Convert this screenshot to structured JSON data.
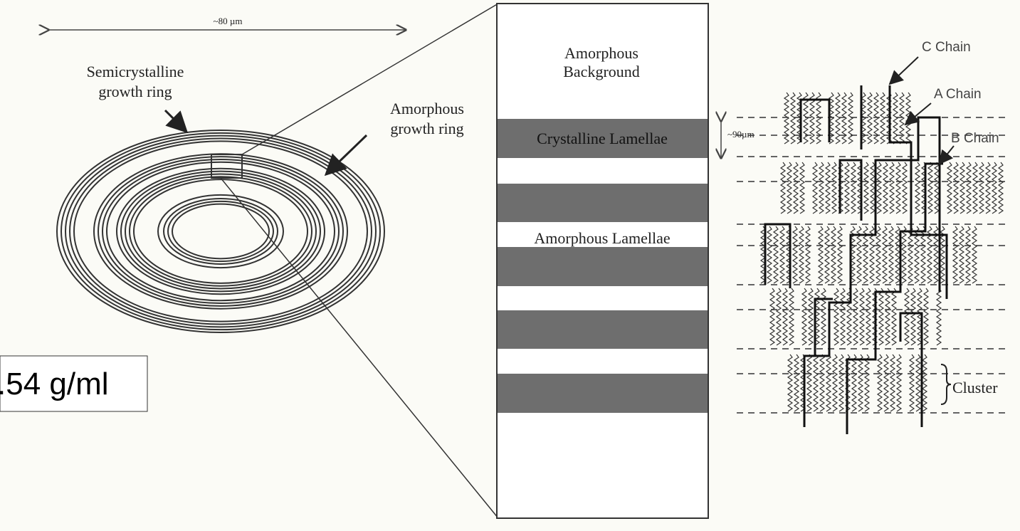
{
  "scale_bar": {
    "label": "~80 µm"
  },
  "rings": {
    "semicrystalline": [
      "Semicrystalline",
      "growth ring"
    ],
    "amorphous": [
      "Amorphous",
      "growth ring"
    ]
  },
  "lamellae": {
    "background": [
      "Amorphous",
      "Background"
    ],
    "crystalline": "Crystalline Lamellae",
    "amorphous": "Amorphous Lamellae",
    "spacing": "~90µm"
  },
  "chains": {
    "c_chain": "C Chain",
    "a_chain": "A Chain",
    "b_chain": "B Chain",
    "cluster": "Cluster"
  },
  "overlay": {
    "density": ".54 g/ml"
  }
}
